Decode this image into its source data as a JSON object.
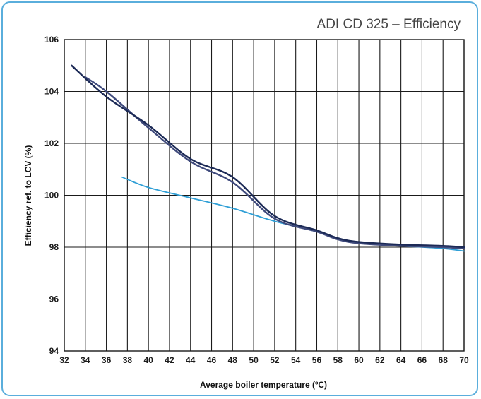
{
  "chart_data": {
    "type": "line",
    "title": "ADI CD 325 – Efficiency",
    "xlabel": "Average boiler temperature (ºC)",
    "ylabel": "Efficiency ref. to LCV (%)",
    "xlim": [
      32,
      70
    ],
    "ylim": [
      94,
      106
    ],
    "x_ticks": [
      "32",
      "34",
      "36",
      "38",
      "40",
      "42",
      "44",
      "46",
      "48",
      "50",
      "52",
      "54",
      "56",
      "58",
      "60",
      "62",
      "64",
      "66",
      "68",
      "70"
    ],
    "y_ticks": [
      "94",
      "96",
      "98",
      "100",
      "102",
      "104",
      "106"
    ],
    "grid": true,
    "series": [
      {
        "color": "#1c2a56",
        "x": [
          32.7,
          36,
          40,
          44,
          48,
          52,
          56,
          58,
          60,
          64,
          68,
          70
        ],
        "y": [
          105.0,
          103.8,
          102.7,
          101.4,
          100.7,
          99.2,
          98.65,
          98.35,
          98.2,
          98.1,
          98.05,
          98.0
        ]
      },
      {
        "color": "#3f4a7c",
        "x": [
          34,
          36,
          40,
          44,
          48,
          52,
          56,
          58,
          60,
          64,
          68,
          70
        ],
        "y": [
          104.55,
          104.0,
          102.6,
          101.3,
          100.5,
          99.1,
          98.6,
          98.3,
          98.15,
          98.05,
          98.0,
          97.95
        ]
      },
      {
        "color": "#2f9fd6",
        "x": [
          37.5,
          40,
          44,
          48,
          52,
          56,
          58,
          60,
          64,
          68,
          70
        ],
        "y": [
          100.7,
          100.3,
          99.9,
          99.5,
          99.0,
          98.6,
          98.35,
          98.15,
          98.05,
          97.95,
          97.85
        ]
      }
    ]
  }
}
